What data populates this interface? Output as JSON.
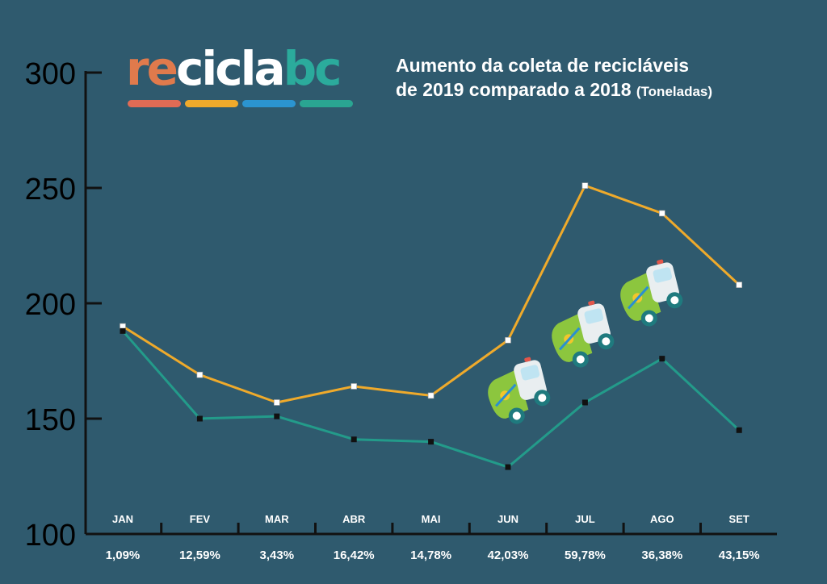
{
  "logo": {
    "part1": "re",
    "part2": "cicla",
    "part3": "bc",
    "colors": [
      "#e06b55",
      "#efaa2b",
      "#2b94d0",
      "#2aa592"
    ]
  },
  "title": {
    "line1": "Aumento da coleta de recicláveis",
    "line2": "de 2019 comparado a 2018",
    "unit": "(Toneladas)"
  },
  "chart_data": {
    "type": "line",
    "categories": [
      "JAN",
      "FEV",
      "MAR",
      "ABR",
      "MAI",
      "JUN",
      "JUL",
      "AGO",
      "SET"
    ],
    "percent_labels": [
      "1,09%",
      "12,59%",
      "3,43%",
      "16,42%",
      "14,78%",
      "42,03%",
      "59,78%",
      "36,38%",
      "43,15%"
    ],
    "series": [
      {
        "color": "#efaa2b",
        "marker": "#ffffff",
        "values": [
          190,
          169,
          157,
          164,
          160,
          184,
          251,
          239,
          208
        ]
      },
      {
        "color": "#239b8a",
        "marker": "#111111",
        "values": [
          188,
          150,
          151,
          141,
          140,
          129,
          157,
          176,
          145
        ]
      }
    ],
    "ylim": [
      100,
      300
    ],
    "yticks": [
      100,
      150,
      200,
      250,
      300
    ],
    "grid": false,
    "legend": "none"
  },
  "decorations": {
    "icon": "garbage-truck-icon",
    "count": 3,
    "colors": {
      "body": "#8cc63e",
      "cab": "#e9eef0",
      "window": "#bfe4f2",
      "wheel": "#1f7a7e"
    }
  }
}
